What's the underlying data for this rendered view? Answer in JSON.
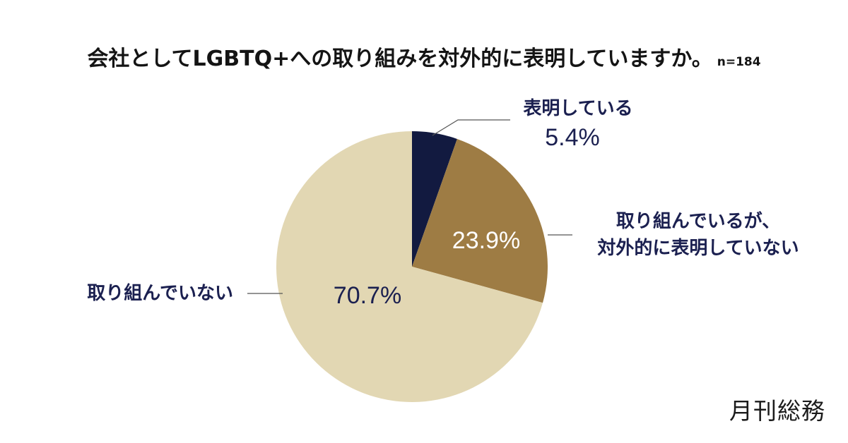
{
  "title": "会社としてLGBTQ+への取り組みを対外的に表明していますか。",
  "sample_size": "n=184",
  "brand": "月刊総務",
  "chart_data": {
    "type": "pie",
    "title": "会社としてLGBTQ+への取り組みを対外的に表明していますか。",
    "slices": [
      {
        "label_lines": [
          "表明している"
        ],
        "value": 5.4,
        "value_label": "5.4%",
        "color": "#121a40"
      },
      {
        "label_lines": [
          "取り組んでいるが、",
          "対外的に表明していない"
        ],
        "value": 23.9,
        "value_label": "23.9%",
        "color": "#9e7c44"
      },
      {
        "label_lines": [
          "取り組んでいない"
        ],
        "value": 70.7,
        "value_label": "70.7%",
        "color": "#e2d7b3"
      }
    ],
    "colors": {
      "label_text": "#1b2050",
      "value_on_dark": "#ffffff",
      "value_on_light": "#1b2050",
      "leader_line": "#555555"
    }
  }
}
